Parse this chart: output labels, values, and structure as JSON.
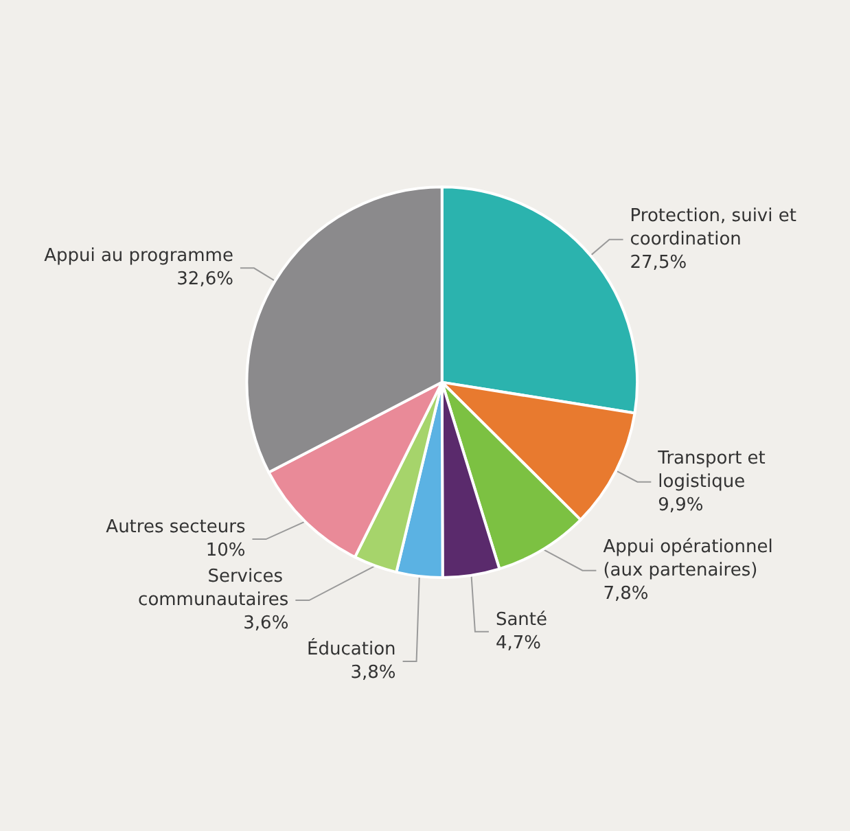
{
  "chart_data": {
    "type": "pie",
    "categories": [
      "Protection, suivi et coordination",
      "Transport et logistique",
      "Appui opérationnel (aux partenaires)",
      "Santé",
      "Éducation",
      "Services communautaires",
      "Autres secteurs",
      "Appui au programme"
    ],
    "values": [
      27.5,
      9.9,
      7.8,
      4.7,
      3.8,
      3.6,
      10,
      32.6
    ],
    "value_labels": [
      "27,5%",
      "9,9%",
      "7,8%",
      "4,7%",
      "3,8%",
      "3,6%",
      "10%",
      "32,6%"
    ],
    "colors": [
      "#2bb3ae",
      "#e87a2f",
      "#7cc142",
      "#5a2a6c",
      "#5bb2e3",
      "#a6d46b",
      "#e98a98",
      "#8b8a8c"
    ],
    "legend": false
  }
}
